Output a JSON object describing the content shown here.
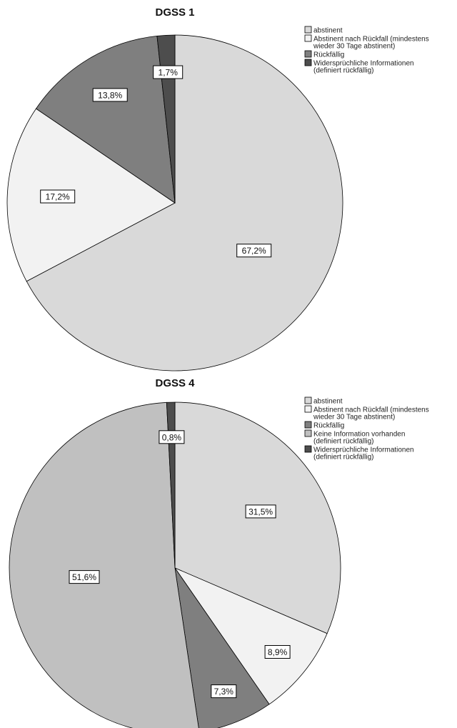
{
  "chart_data": [
    {
      "type": "pie",
      "title": "DGSS 1",
      "start_angle_deg": 0,
      "direction": "clockwise",
      "slices": [
        {
          "label": "abstinent",
          "value": 67.2,
          "display": "67,2%",
          "color": "#d9d9d9"
        },
        {
          "label": "Abstinent nach Rückfall (mindestens wieder 30 Tage abstinent)",
          "value": 17.2,
          "display": "17,2%",
          "color": "#f2f2f2"
        },
        {
          "label": "Rückfällig",
          "value": 13.8,
          "display": "13,8%",
          "color": "#7f7f7f"
        },
        {
          "label": "Widersprüchliche Informationen (definiert rückfällig)",
          "value": 1.7,
          "display": "1,7%",
          "color": "#4d4d4d"
        }
      ],
      "legend": {
        "placement": "top-right",
        "items": [
          {
            "lines": [
              "abstinent"
            ],
            "color": "#d9d9d9"
          },
          {
            "lines": [
              "Abstinent nach Rückfall (mindestens",
              "wieder 30 Tage abstinent)"
            ],
            "color": "#f2f2f2"
          },
          {
            "lines": [
              "Rückfällig"
            ],
            "color": "#7f7f7f"
          },
          {
            "lines": [
              "Widersprüchliche Informationen",
              "(definiert rückfällig)"
            ],
            "color": "#4d4d4d"
          }
        ]
      }
    },
    {
      "type": "pie",
      "title": "DGSS 4",
      "start_angle_deg": 0,
      "direction": "clockwise",
      "slices": [
        {
          "label": "abstinent",
          "value": 31.5,
          "display": "31,5%",
          "color": "#d9d9d9"
        },
        {
          "label": "Abstinent nach Rückfall (mindestens wieder 30 Tage abstinent)",
          "value": 8.9,
          "display": "8,9%",
          "color": "#f2f2f2"
        },
        {
          "label": "Rückfällig",
          "value": 7.3,
          "display": "7,3%",
          "color": "#7f7f7f"
        },
        {
          "label": "Keine Information vorhanden (definiert rückfällig)",
          "value": 51.6,
          "display": "51,6%",
          "color": "#c0c0c0"
        },
        {
          "label": "Widersprüchliche Informationen (definiert rückfällig)",
          "value": 0.8,
          "display": "0,8%",
          "color": "#4d4d4d"
        }
      ],
      "legend": {
        "placement": "top-right",
        "items": [
          {
            "lines": [
              "abstinent"
            ],
            "color": "#d9d9d9"
          },
          {
            "lines": [
              "Abstinent nach Rückfall (mindestens",
              "wieder 30 Tage abstinent)"
            ],
            "color": "#f2f2f2"
          },
          {
            "lines": [
              "Rückfällig"
            ],
            "color": "#7f7f7f"
          },
          {
            "lines": [
              "Keine Information vorhanden",
              "(definiert rückfällig)"
            ],
            "color": "#c0c0c0"
          },
          {
            "lines": [
              "Widersprüchliche Informationen",
              "(definiert rückfällig)"
            ],
            "color": "#4d4d4d"
          }
        ]
      }
    }
  ]
}
